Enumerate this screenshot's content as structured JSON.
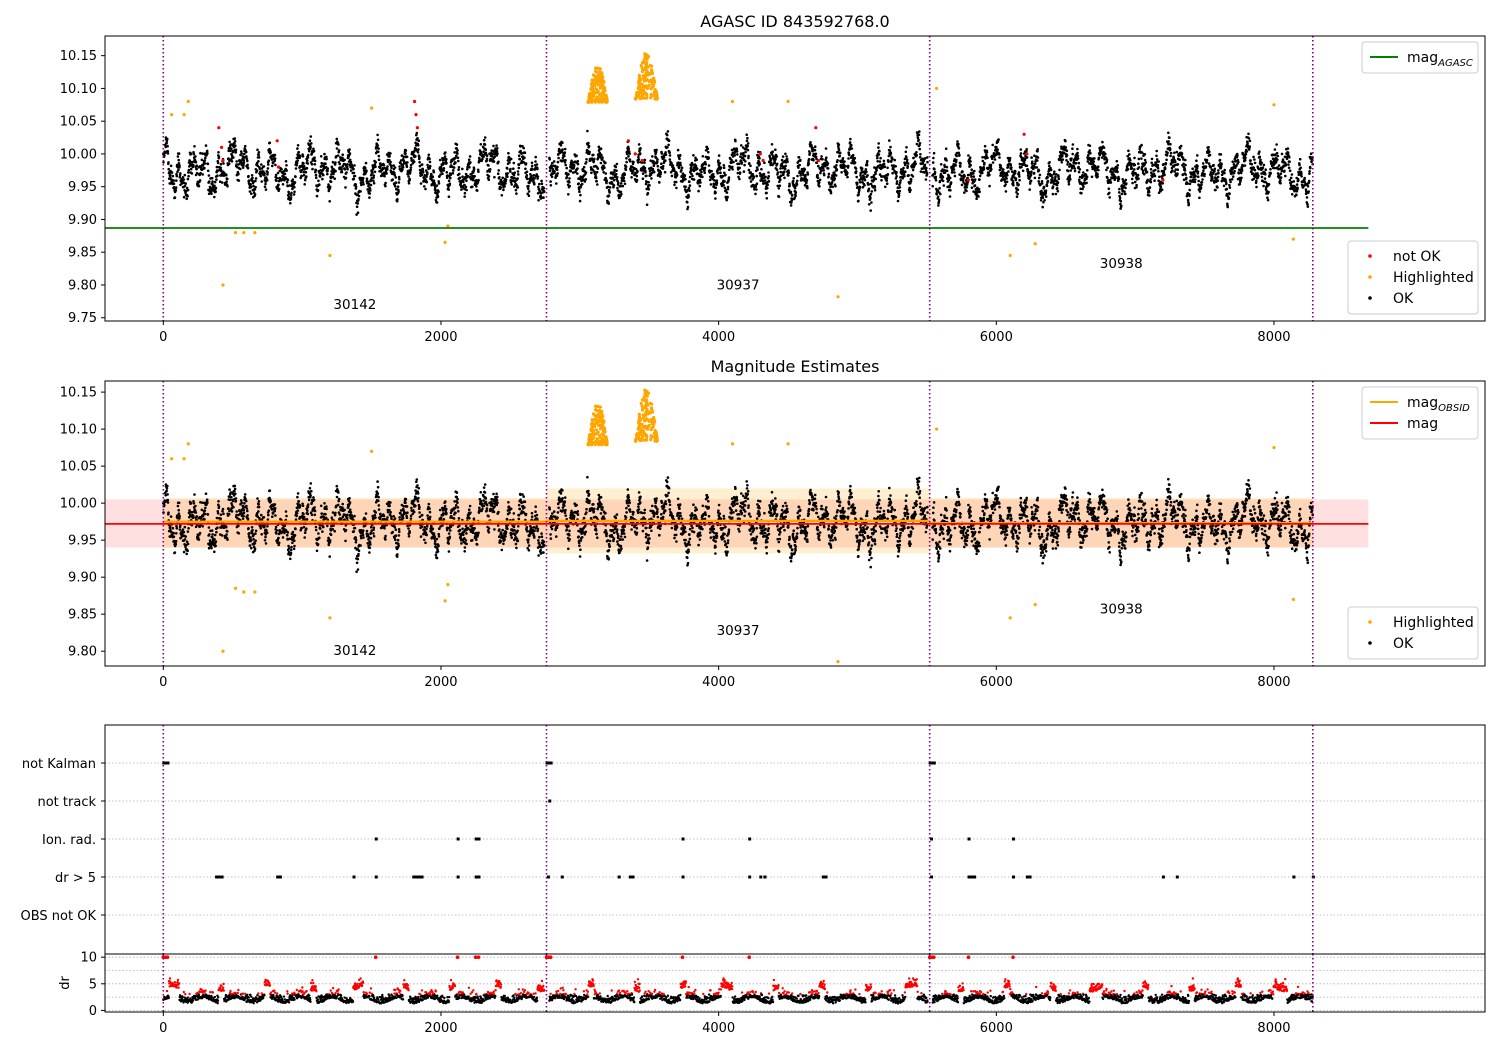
{
  "chart_data": [
    {
      "type": "scatter",
      "title": "AGASC ID 843592768.0",
      "xlim": [
        -420,
        9520
      ],
      "ylim": [
        9.745,
        10.18
      ],
      "xticks": [
        0,
        2000,
        4000,
        6000,
        8000
      ],
      "xtick_labels": [
        "0",
        "2000",
        "4000",
        "6000",
        "8000"
      ],
      "yticks": [
        9.75,
        9.8,
        9.85,
        9.9,
        9.95,
        10.0,
        10.05,
        10.1,
        10.15
      ],
      "ytick_labels": [
        "9.75",
        "9.80",
        "9.85",
        "9.90",
        "9.95",
        "10.00",
        "10.05",
        "10.10",
        "10.15"
      ],
      "grid": false,
      "obs_boundaries": [
        0,
        2760,
        5520,
        8280
      ],
      "annotations": [
        {
          "text": "30142",
          "x": 1380,
          "y": 9.763
        },
        {
          "text": "30937",
          "x": 4140,
          "y": 9.793
        },
        {
          "text": "30938",
          "x": 6900,
          "y": 9.826
        }
      ],
      "hlines": [
        {
          "name": "mag_AGASC",
          "y": 9.887,
          "x0": -420,
          "x1": 8680,
          "color": "#008000"
        }
      ],
      "series": [
        {
          "name": "not OK",
          "color": "#ff0000",
          "x": [
            400,
            420,
            430,
            820,
            830,
            1810,
            1820,
            1830,
            3350,
            3400,
            3450,
            4300,
            4320,
            4700,
            4720,
            5800,
            6200,
            6220,
            7200
          ],
          "y": [
            10.04,
            10.01,
            9.99,
            10.02,
            9.98,
            10.08,
            10.06,
            10.04,
            10.02,
            10.0,
            9.99,
            10.0,
            9.99,
            10.04,
            9.99,
            9.96,
            10.03,
            10.0,
            9.96
          ]
        },
        {
          "name": "Highlighted",
          "color": "#ffa500",
          "x": [
            60,
            150,
            180,
            430,
            520,
            580,
            660,
            1200,
            1500,
            2030,
            2050,
            4100,
            4500,
            4860,
            5570,
            6100,
            6280,
            8000,
            8140
          ],
          "y": [
            10.06,
            10.06,
            10.08,
            9.8,
            9.88,
            9.88,
            9.88,
            9.845,
            10.07,
            9.865,
            9.89,
            10.08,
            10.08,
            9.782,
            10.1,
            9.845,
            9.863,
            10.075,
            9.87
          ],
          "clusters": [
            {
              "x0": 3060,
              "x1": 3200,
              "ymin": 10.06,
              "ymax": 10.135
            },
            {
              "x0": 3400,
              "x1": 3560,
              "ymin": 10.06,
              "ymax": 10.155
            }
          ]
        },
        {
          "name": "OK",
          "color": "#000000",
          "x_range": [
            0,
            8280
          ],
          "y_center": 9.975,
          "y_spread": 0.1
        }
      ],
      "legends": [
        {
          "position": "upper-right",
          "entries": [
            {
              "kind": "line",
              "label": "mag",
              "sub": "AGASC",
              "color": "#008000"
            }
          ]
        },
        {
          "position": "lower-right",
          "entries": [
            {
              "kind": "marker",
              "label": "not OK",
              "color": "#ff0000"
            },
            {
              "kind": "marker",
              "label": "Highlighted",
              "color": "#ffa500"
            },
            {
              "kind": "marker",
              "label": "OK",
              "color": "#000000"
            }
          ]
        }
      ]
    },
    {
      "type": "scatter",
      "title": "Magnitude Estimates",
      "xlim": [
        -420,
        9520
      ],
      "ylim": [
        9.78,
        10.165
      ],
      "xticks": [
        0,
        2000,
        4000,
        6000,
        8000
      ],
      "xtick_labels": [
        "0",
        "2000",
        "4000",
        "6000",
        "8000"
      ],
      "yticks": [
        9.8,
        9.85,
        9.9,
        9.95,
        10.0,
        10.05,
        10.1,
        10.15
      ],
      "ytick_labels": [
        "9.80",
        "9.85",
        "9.90",
        "9.95",
        "10.00",
        "10.05",
        "10.10",
        "10.15"
      ],
      "grid": false,
      "obs_boundaries": [
        0,
        2760,
        5520,
        8280
      ],
      "annotations": [
        {
          "text": "30142",
          "x": 1380,
          "y": 9.795
        },
        {
          "text": "30937",
          "x": 4140,
          "y": 9.822
        },
        {
          "text": "30938",
          "x": 6900,
          "y": 9.851
        }
      ],
      "hlines": [
        {
          "name": "mag_OBSID",
          "segments": [
            {
              "x0": 0,
              "x1": 2760,
              "y": 9.975
            },
            {
              "x0": 2760,
              "x1": 5520,
              "y": 9.976
            },
            {
              "x0": 5520,
              "x1": 8280,
              "y": 9.973
            }
          ],
          "color": "#ffa500"
        },
        {
          "name": "mag",
          "y": 9.972,
          "x0": -420,
          "x1": 8680,
          "color": "#ff0000"
        }
      ],
      "bands": [
        {
          "color": "#ff0000",
          "opacity": 0.12,
          "x0": -420,
          "x1": 8680,
          "y0": 9.94,
          "y1": 10.005
        },
        {
          "color": "#ffa500",
          "opacity": 0.18,
          "x0": 0,
          "x1": 2760,
          "y0": 9.94,
          "y1": 10.007
        },
        {
          "color": "#ffa500",
          "opacity": 0.18,
          "x0": 2760,
          "x1": 5520,
          "y0": 9.932,
          "y1": 10.02
        },
        {
          "color": "#ffa500",
          "opacity": 0.18,
          "x0": 5520,
          "x1": 8280,
          "y0": 9.94,
          "y1": 10.007
        }
      ],
      "series": [
        {
          "name": "Highlighted",
          "color": "#ffa500",
          "x": [
            60,
            150,
            180,
            430,
            520,
            580,
            660,
            1200,
            1500,
            2030,
            2050,
            4100,
            4500,
            4860,
            5570,
            6100,
            6280,
            8000,
            8140
          ],
          "y": [
            10.06,
            10.06,
            10.08,
            9.8,
            9.885,
            9.88,
            9.88,
            9.845,
            10.07,
            9.868,
            9.89,
            10.08,
            10.08,
            9.786,
            10.1,
            9.845,
            9.863,
            10.075,
            9.87
          ],
          "clusters": [
            {
              "x0": 3060,
              "x1": 3200,
              "ymin": 10.06,
              "ymax": 10.135
            },
            {
              "x0": 3400,
              "x1": 3560,
              "ymin": 10.06,
              "ymax": 10.155
            }
          ]
        },
        {
          "name": "OK",
          "color": "#000000",
          "x_range": [
            0,
            8280
          ],
          "y_center": 9.975,
          "y_spread": 0.1
        }
      ],
      "legends": [
        {
          "position": "upper-right",
          "entries": [
            {
              "kind": "line",
              "label": "mag",
              "sub": "OBSID",
              "color": "#ffa500"
            },
            {
              "kind": "line",
              "label": "mag",
              "sub": "",
              "color": "#ff0000"
            }
          ]
        },
        {
          "position": "lower-right",
          "entries": [
            {
              "kind": "marker",
              "label": "Highlighted",
              "color": "#ffa500"
            },
            {
              "kind": "marker",
              "label": "OK",
              "color": "#000000"
            }
          ]
        }
      ]
    },
    {
      "type": "scatter",
      "title": "",
      "xlim": [
        -420,
        9520
      ],
      "categories": [
        "not Kalman",
        "not track",
        "Ion. rad.",
        "dr > 5",
        "OBS not OK"
      ],
      "grid": "horizontal-dotted",
      "obs_boundaries": [
        0,
        2760,
        5520,
        8280
      ],
      "flag_points": {
        "not Kalman": [
          0,
          15,
          30,
          2760,
          2775,
          2790,
          5520,
          5535,
          5550
        ],
        "not track": [
          2780
        ],
        "Ion. rad.": [
          1530,
          2120,
          2250,
          2270,
          3740,
          4220,
          5530,
          5800,
          6120
        ],
        "dr > 5": [
          380,
          400,
          420,
          820,
          840,
          1370,
          1530,
          1800,
          1820,
          1840,
          1860,
          2120,
          2250,
          2270,
          2770,
          2870,
          3280,
          3360,
          3380,
          3740,
          4220,
          4300,
          4330,
          4750,
          4770,
          5530,
          5800,
          5820,
          5840,
          6120,
          6220,
          6240,
          7200,
          7300,
          8140,
          8280
        ],
        "OBS not OK": []
      }
    },
    {
      "type": "scatter",
      "title": "",
      "xlim": [
        -420,
        9520
      ],
      "ylim": [
        -0.3,
        10.6
      ],
      "xticks": [
        0,
        2000,
        4000,
        6000,
        8000
      ],
      "xtick_labels": [
        "0",
        "2000",
        "4000",
        "6000",
        "8000"
      ],
      "yticks": [
        0,
        5,
        10
      ],
      "ytick_labels": [
        "0",
        "5",
        "10"
      ],
      "ylabel": "dr",
      "grid": "horizontal-dotted",
      "obs_boundaries": [
        0,
        2760,
        5520,
        8280
      ],
      "series": [
        {
          "name": "dr",
          "color": "#000000",
          "x_range": [
            0,
            8280
          ],
          "y_center": 1.8,
          "y_spread": 2.6
        },
        {
          "name": "dr > 5",
          "color": "#ff0000",
          "x": [
            0,
            15,
            30,
            1530,
            2120,
            2250,
            2270,
            2760,
            2775,
            2790,
            3740,
            4220,
            5520,
            5535,
            5550,
            5800,
            6120
          ],
          "y": [
            10,
            10,
            10,
            10,
            10,
            10,
            10,
            10,
            10,
            10,
            10,
            10,
            10,
            10,
            10,
            10,
            10
          ]
        }
      ]
    }
  ]
}
